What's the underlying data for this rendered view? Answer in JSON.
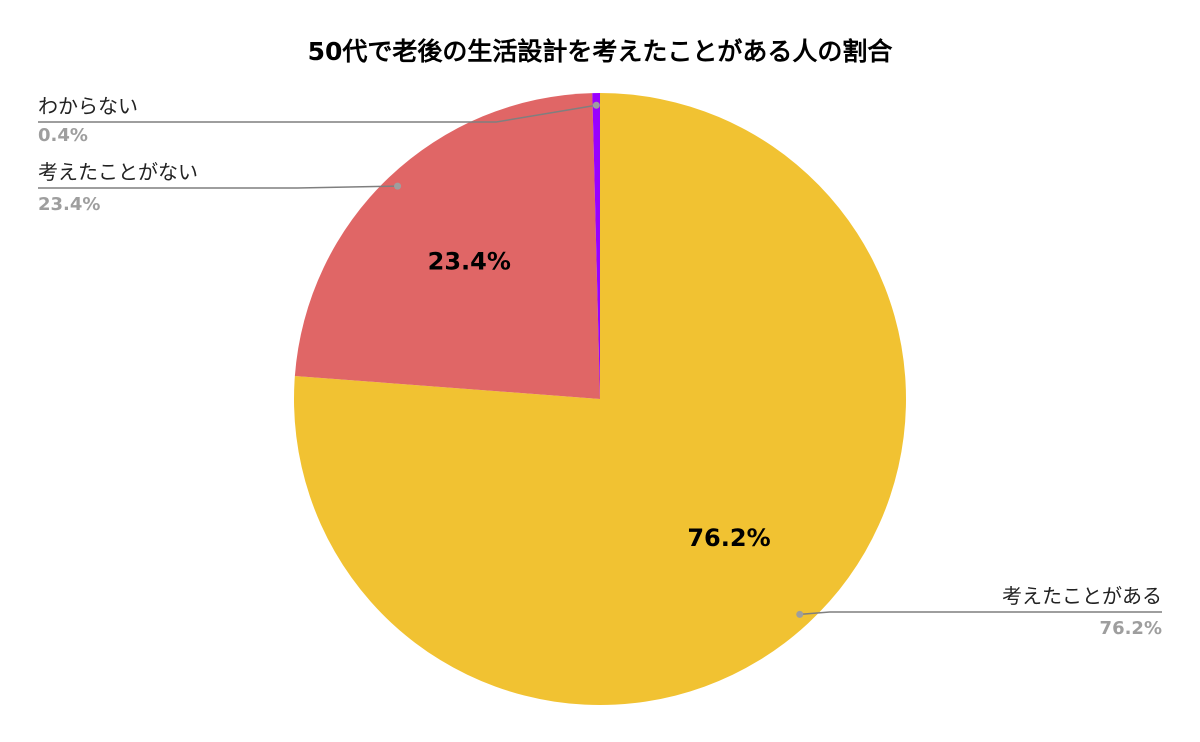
{
  "chart_data": {
    "type": "pie",
    "title": "50代で老後の生活設計を考えたことがある人の割合",
    "slices": [
      {
        "label": "考えたことがある",
        "value": 76.2,
        "display": "76.2%",
        "color": "#F1C232",
        "show_inner_label": true
      },
      {
        "label": "考えたことがない",
        "value": 23.4,
        "display": "23.4%",
        "color": "#E06666",
        "show_inner_label": true
      },
      {
        "label": "わからない",
        "value": 0.4,
        "display": "0.4%",
        "color": "#9900FF",
        "show_inner_label": false
      }
    ],
    "start_angle_deg": 0,
    "direction": "clockwise",
    "legend": "none",
    "outside_labels": true
  }
}
